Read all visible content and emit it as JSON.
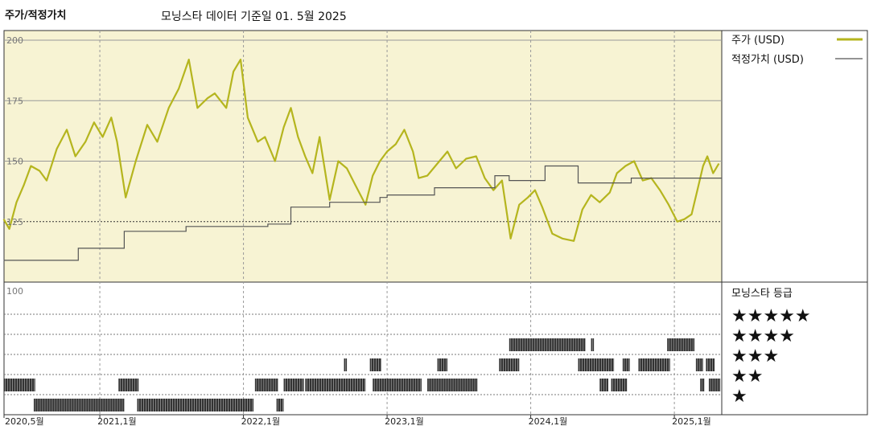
{
  "header": {
    "left_title": "주가/적정가치",
    "subtitle": "모닝스타 데이터 기준일 01. 5월 2025"
  },
  "legend": {
    "price_label": "주가 (USD)",
    "fair_label": "적정가치 (USD)",
    "price_color": "#b5b51e",
    "fair_color": "#555555"
  },
  "rating": {
    "title": "모닝스타 등급",
    "stars": [
      "★★★★★",
      "★★★★",
      "★★★",
      "★★",
      "★"
    ]
  },
  "chart_data": {
    "type": "line",
    "y_ticks": [
      "200",
      "175",
      "150",
      "125"
    ],
    "lower_tick": "100",
    "ylim": [
      100,
      200
    ],
    "x_tick_labels": [
      "2020,5월",
      "2021,1월",
      "2022,1월",
      "2023,1월",
      "2024,1월",
      "2025,1월"
    ],
    "x_tick_dates": [
      2020.333,
      2021.0,
      2022.0,
      2023.0,
      2024.0,
      2025.0
    ],
    "xlim": [
      2020.333,
      2025.33
    ],
    "series": [
      {
        "name": "주가 (USD)",
        "points": [
          [
            2020.33,
            126
          ],
          [
            2020.37,
            122
          ],
          [
            2020.42,
            133
          ],
          [
            2020.47,
            140
          ],
          [
            2020.52,
            148
          ],
          [
            2020.58,
            146
          ],
          [
            2020.63,
            142
          ],
          [
            2020.7,
            155
          ],
          [
            2020.77,
            163
          ],
          [
            2020.83,
            152
          ],
          [
            2020.9,
            158
          ],
          [
            2020.96,
            166
          ],
          [
            2021.02,
            160
          ],
          [
            2021.08,
            168
          ],
          [
            2021.12,
            158
          ],
          [
            2021.18,
            135
          ],
          [
            2021.25,
            150
          ],
          [
            2021.33,
            165
          ],
          [
            2021.4,
            158
          ],
          [
            2021.48,
            172
          ],
          [
            2021.55,
            180
          ],
          [
            2021.62,
            192
          ],
          [
            2021.68,
            172
          ],
          [
            2021.75,
            176
          ],
          [
            2021.8,
            178
          ],
          [
            2021.88,
            172
          ],
          [
            2021.93,
            187
          ],
          [
            2021.98,
            192
          ],
          [
            2022.03,
            168
          ],
          [
            2022.1,
            158
          ],
          [
            2022.15,
            160
          ],
          [
            2022.22,
            150
          ],
          [
            2022.28,
            164
          ],
          [
            2022.33,
            172
          ],
          [
            2022.38,
            160
          ],
          [
            2022.43,
            152
          ],
          [
            2022.48,
            145
          ],
          [
            2022.53,
            160
          ],
          [
            2022.6,
            134
          ],
          [
            2022.66,
            150
          ],
          [
            2022.72,
            147
          ],
          [
            2022.78,
            140
          ],
          [
            2022.85,
            132
          ],
          [
            2022.9,
            144
          ],
          [
            2022.95,
            150
          ],
          [
            2023.0,
            154
          ],
          [
            2023.06,
            157
          ],
          [
            2023.12,
            163
          ],
          [
            2023.18,
            154
          ],
          [
            2023.22,
            143
          ],
          [
            2023.28,
            144
          ],
          [
            2023.35,
            149
          ],
          [
            2023.42,
            154
          ],
          [
            2023.48,
            147
          ],
          [
            2023.55,
            151
          ],
          [
            2023.62,
            152
          ],
          [
            2023.68,
            143
          ],
          [
            2023.74,
            138
          ],
          [
            2023.8,
            142
          ],
          [
            2023.86,
            118
          ],
          [
            2023.92,
            132
          ],
          [
            2023.98,
            135
          ],
          [
            2024.03,
            138
          ],
          [
            2024.08,
            131
          ],
          [
            2024.15,
            120
          ],
          [
            2024.22,
            118
          ],
          [
            2024.3,
            117
          ],
          [
            2024.36,
            130
          ],
          [
            2024.42,
            136
          ],
          [
            2024.48,
            133
          ],
          [
            2024.55,
            137
          ],
          [
            2024.6,
            145
          ],
          [
            2024.66,
            148
          ],
          [
            2024.72,
            150
          ],
          [
            2024.78,
            142
          ],
          [
            2024.84,
            143
          ],
          [
            2024.9,
            138
          ],
          [
            2024.96,
            132
          ],
          [
            2025.02,
            125
          ],
          [
            2025.07,
            126
          ],
          [
            2025.12,
            128
          ],
          [
            2025.16,
            138
          ],
          [
            2025.2,
            148
          ],
          [
            2025.23,
            152
          ],
          [
            2025.27,
            145
          ],
          [
            2025.31,
            149
          ]
        ]
      },
      {
        "name": "적정가치 (USD)",
        "steps": [
          [
            2020.33,
            109
          ],
          [
            2020.85,
            114
          ],
          [
            2021.17,
            121
          ],
          [
            2021.6,
            123
          ],
          [
            2022.17,
            124
          ],
          [
            2022.33,
            131
          ],
          [
            2022.55,
            131
          ],
          [
            2022.6,
            133
          ],
          [
            2022.95,
            135
          ],
          [
            2023.0,
            136
          ],
          [
            2023.33,
            139
          ],
          [
            2023.75,
            144
          ],
          [
            2023.85,
            142
          ],
          [
            2024.1,
            148
          ],
          [
            2024.3,
            148
          ],
          [
            2024.33,
            141
          ],
          [
            2024.65,
            141
          ],
          [
            2024.7,
            143
          ],
          [
            2025.33,
            143
          ]
        ]
      }
    ],
    "rating_history": [
      {
        "stars": 5,
        "ranges": []
      },
      {
        "stars": 4,
        "ranges": [
          [
            2023.85,
            2024.38
          ],
          [
            2024.42,
            2024.44
          ],
          [
            2024.95,
            2025.14
          ]
        ]
      },
      {
        "stars": 3,
        "ranges": [
          [
            2022.7,
            2022.72
          ],
          [
            2022.88,
            2022.96
          ],
          [
            2023.35,
            2023.42
          ],
          [
            2023.78,
            2023.92
          ],
          [
            2024.33,
            2024.58
          ],
          [
            2024.64,
            2024.69
          ],
          [
            2024.75,
            2024.97
          ],
          [
            2025.15,
            2025.2
          ],
          [
            2025.22,
            2025.28
          ]
        ]
      },
      {
        "stars": 2,
        "ranges": [
          [
            2020.33,
            2020.55
          ],
          [
            2021.13,
            2021.27
          ],
          [
            2022.08,
            2022.24
          ],
          [
            2022.28,
            2022.42
          ],
          [
            2022.43,
            2022.85
          ],
          [
            2022.9,
            2023.24
          ],
          [
            2023.28,
            2023.63
          ],
          [
            2024.48,
            2024.54
          ],
          [
            2024.56,
            2024.67
          ],
          [
            2025.18,
            2025.21
          ],
          [
            2025.24,
            2025.32
          ]
        ]
      },
      {
        "stars": 1,
        "ranges": [
          [
            2020.54,
            2021.17
          ],
          [
            2021.26,
            2022.07
          ],
          [
            2022.23,
            2022.28
          ]
        ]
      }
    ]
  }
}
